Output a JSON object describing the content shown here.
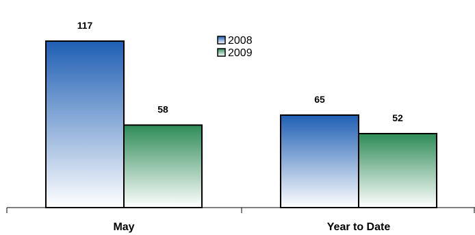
{
  "chart_data": {
    "type": "bar",
    "title": "",
    "xlabel": "",
    "ylabel": "",
    "categories": [
      "May",
      "Year to Date"
    ],
    "series": [
      {
        "name": "2008",
        "values": [
          117,
          65
        ],
        "color_top": "#1f5fb4",
        "color_bottom": "#ffffff"
      },
      {
        "name": "2009",
        "values": [
          58,
          52
        ],
        "color_top": "#2e8b57",
        "color_bottom": "#ffffff"
      }
    ],
    "ylim": [
      0,
      125
    ],
    "grid": false,
    "legend_position": "top-center",
    "data_labels": true
  }
}
